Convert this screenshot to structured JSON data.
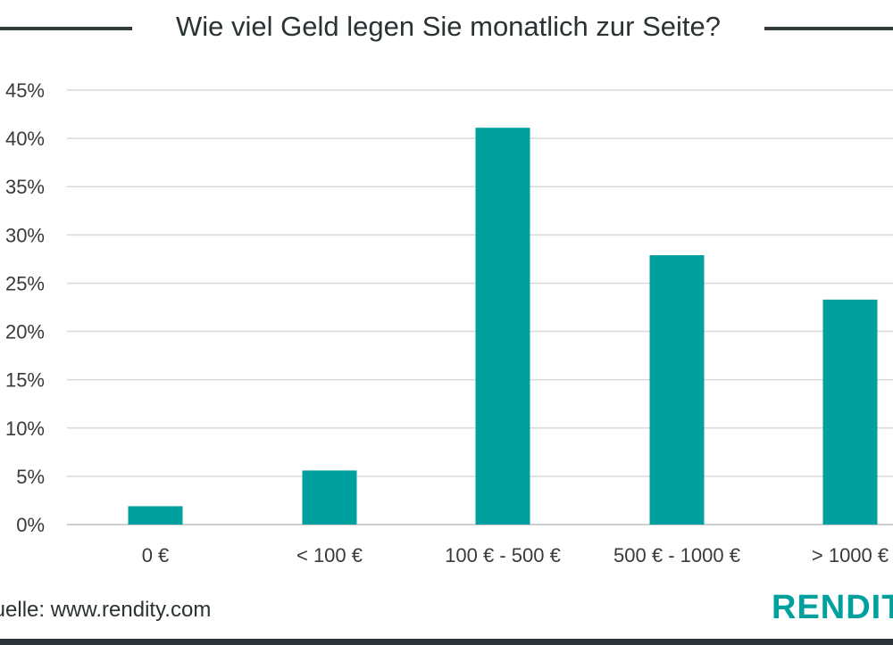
{
  "chart_data": {
    "type": "bar",
    "title": "Wie viel Geld legen Sie monatlich zur Seite?",
    "categories": [
      "0 €",
      "< 100 €",
      "100 € - 500 €",
      "500 € - 1000 €",
      "> 1000 €"
    ],
    "values": [
      1.9,
      5.6,
      41.1,
      27.9,
      23.3
    ],
    "ylim": [
      0,
      45
    ],
    "yticks": [
      "0%",
      "5%",
      "10%",
      "15%",
      "20%",
      "25%",
      "30%",
      "35%",
      "40%",
      "45%"
    ],
    "grid": true,
    "bar_color": "#00a09e"
  },
  "source": "Quelle: www.rendity.com",
  "logo": {
    "text": "RENDITY",
    "color": "#00a09e"
  }
}
